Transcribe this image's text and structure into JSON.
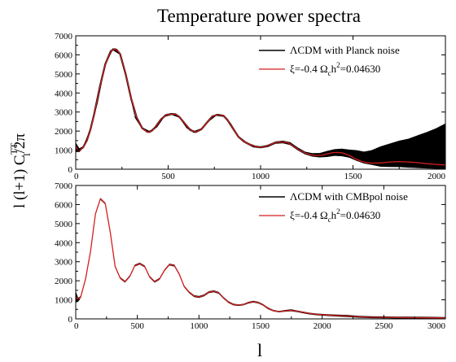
{
  "title": "Temperature power spectra",
  "xlabel": "l",
  "ylabel": "l (l+1) C_l^TT / 2π",
  "ylabel_parts": {
    "pre": "l (l+1) C",
    "sup": "TT",
    "sub": "l",
    "post": "/2π"
  },
  "colors": {
    "lcdm": "#000000",
    "xi": "#d41f1f",
    "band": "#000000",
    "axis": "#000000"
  },
  "chart_data": [
    {
      "type": "line",
      "panel": "top",
      "xlim": [
        0,
        2000
      ],
      "ylim": [
        0,
        7000
      ],
      "xticks": [
        "0",
        "500",
        "1000",
        "1500",
        "2000"
      ],
      "yticks": [
        "0",
        "1000",
        "2000",
        "3000",
        "4000",
        "5000",
        "6000",
        "7000"
      ],
      "legend_position": "top-right",
      "legend": [
        {
          "label_parts": {
            "pre": "ΛCDM with Planck noise"
          },
          "color": "#000000"
        },
        {
          "label_parts": {
            "pre": "ξ=-0.4 Ω",
            "sub": "c",
            "mid": "h",
            "sup": "2",
            "post": "=0.04630"
          },
          "color": "#d41f1f"
        }
      ],
      "series": [
        {
          "style": "line",
          "x": [
            0,
            10,
            20,
            40,
            60,
            80,
            100,
            130,
            160,
            190,
            210,
            220,
            240,
            270,
            300,
            330,
            360,
            390,
            410,
            430,
            460,
            490,
            520,
            540,
            560,
            590,
            620,
            650,
            680,
            710,
            740,
            770,
            800,
            820,
            850,
            880,
            910,
            940,
            970,
            1000,
            1030,
            1060,
            1090,
            1120,
            1150,
            1180,
            1210,
            1240,
            1270,
            1300,
            1330,
            1360,
            1390,
            1420,
            1450,
            1480,
            1510,
            1540,
            1570,
            1600,
            1650,
            1700,
            1750,
            1800,
            1850,
            1900,
            1950,
            2000
          ],
          "y": [
            1300,
            1000,
            1000,
            1150,
            1500,
            2100,
            2900,
            4300,
            5500,
            6200,
            6300,
            6280,
            6050,
            5000,
            3700,
            2700,
            2150,
            1950,
            2000,
            2200,
            2600,
            2850,
            2900,
            2880,
            2750,
            2400,
            2050,
            1950,
            2100,
            2450,
            2780,
            2860,
            2800,
            2600,
            2150,
            1700,
            1450,
            1300,
            1200,
            1150,
            1200,
            1320,
            1420,
            1430,
            1380,
            1200,
            1000,
            850,
            760,
            720,
            730,
            800,
            870,
            880,
            840,
            720,
            560,
            430,
            350,
            320,
            330,
            380,
            400,
            380,
            340,
            290,
            250,
            220
          ]
        },
        {
          "style": "band",
          "x": [
            0,
            20,
            40,
            80,
            120,
            160,
            200,
            240,
            280,
            320,
            360,
            400,
            440,
            480,
            520,
            560,
            600,
            640,
            680,
            720,
            760,
            800,
            840,
            880,
            920,
            960,
            1000,
            1040,
            1080,
            1120,
            1160,
            1200,
            1240,
            1280,
            1320,
            1360,
            1400,
            1440,
            1480,
            1520,
            1560,
            1600,
            1650,
            1700,
            1750,
            1800,
            1850,
            1900,
            1950,
            2000
          ],
          "y_upper": [
            1400,
            1100,
            1200,
            2150,
            3600,
            5550,
            6350,
            6100,
            4600,
            2800,
            2200,
            2000,
            2300,
            2850,
            2950,
            2800,
            2250,
            2000,
            2150,
            2600,
            2900,
            2850,
            2400,
            1750,
            1450,
            1250,
            1200,
            1280,
            1450,
            1500,
            1420,
            1150,
            920,
            840,
            850,
            960,
            1050,
            1080,
            1030,
            1000,
            920,
            1000,
            1200,
            1350,
            1500,
            1600,
            1780,
            1950,
            2150,
            2400
          ],
          "y_lower": [
            900,
            900,
            1100,
            2050,
            3500,
            5450,
            6250,
            6000,
            4500,
            2700,
            2100,
            1900,
            2200,
            2750,
            2850,
            2700,
            2150,
            1900,
            2050,
            2500,
            2800,
            2750,
            2300,
            1650,
            1350,
            1150,
            1100,
            1160,
            1330,
            1360,
            1270,
            1000,
            780,
            660,
            620,
            640,
            700,
            680,
            600,
            440,
            300,
            230,
            130,
            120,
            110,
            80,
            60,
            40,
            20,
            0
          ]
        },
        {
          "style": "line",
          "x": [
            0,
            10,
            20,
            40,
            60,
            80,
            100,
            130,
            160,
            190,
            210,
            220,
            240,
            270,
            300,
            330,
            360,
            390,
            410,
            430,
            460,
            490,
            520,
            540,
            560,
            590,
            620,
            650,
            680,
            710,
            740,
            770,
            800,
            820,
            850,
            880,
            910,
            940,
            970,
            1000,
            1030,
            1060,
            1090,
            1120,
            1150,
            1180,
            1210,
            1240,
            1270,
            1300,
            1330,
            1360,
            1390,
            1420,
            1450,
            1480,
            1510,
            1540,
            1570,
            1600,
            1650,
            1700,
            1750,
            1800,
            1850,
            1900,
            1950,
            2000
          ],
          "y": [
            1250,
            980,
            980,
            1130,
            1480,
            2080,
            2880,
            4280,
            5480,
            6190,
            6300,
            6280,
            6060,
            5020,
            3720,
            2710,
            2150,
            1940,
            1990,
            2190,
            2590,
            2850,
            2900,
            2880,
            2750,
            2400,
            2050,
            1950,
            2100,
            2450,
            2780,
            2860,
            2800,
            2600,
            2150,
            1700,
            1450,
            1300,
            1200,
            1150,
            1200,
            1320,
            1420,
            1430,
            1380,
            1200,
            1000,
            850,
            760,
            720,
            730,
            800,
            870,
            880,
            840,
            720,
            560,
            430,
            350,
            320,
            330,
            380,
            400,
            380,
            340,
            290,
            250,
            220
          ]
        }
      ]
    },
    {
      "type": "line",
      "panel": "bottom",
      "xlim": [
        0,
        3000
      ],
      "ylim": [
        0,
        7000
      ],
      "xticks": [
        "0",
        "500",
        "1000",
        "1500",
        "2000",
        "2500",
        "3000"
      ],
      "yticks": [
        "0",
        "1000",
        "2000",
        "3000",
        "4000",
        "5000",
        "6000",
        "7000"
      ],
      "legend_position": "top-right",
      "legend": [
        {
          "label_parts": {
            "pre": "ΛCDM with CMBpol noise"
          },
          "color": "#000000"
        },
        {
          "label_parts": {
            "pre": "ξ=-0.4 Ω",
            "sub": "c",
            "mid": "h",
            "sup": "2",
            "post": "=0.04630"
          },
          "color": "#d41f1f"
        }
      ],
      "series": [
        {
          "style": "band",
          "x": [
            0,
            20,
            40,
            80,
            120,
            160,
            200,
            240,
            280,
            320,
            360,
            400,
            440,
            480,
            520,
            560,
            600,
            640,
            680,
            720,
            760,
            800,
            840,
            880,
            920,
            960,
            1000,
            1040,
            1080,
            1120,
            1160,
            1200,
            1240,
            1280,
            1320,
            1360,
            1400,
            1440,
            1480,
            1520,
            1560,
            1600,
            1650,
            1700,
            1750,
            1800,
            1850,
            1900,
            1950,
            2000,
            2100,
            2200,
            2300,
            2400,
            2500,
            2600,
            2700,
            2800,
            2900,
            3000
          ],
          "y_upper": [
            1450,
            1100,
            1200,
            2150,
            3600,
            5550,
            6350,
            6100,
            4600,
            2800,
            2200,
            2000,
            2300,
            2850,
            2950,
            2800,
            2250,
            2000,
            2150,
            2600,
            2900,
            2850,
            2400,
            1750,
            1450,
            1250,
            1200,
            1280,
            1450,
            1500,
            1420,
            1150,
            920,
            800,
            760,
            790,
            890,
            950,
            900,
            780,
            600,
            480,
            420,
            470,
            500,
            440,
            380,
            320,
            280,
            260,
            230,
            210,
            160,
            140,
            130,
            120,
            115,
            110,
            105,
            100
          ],
          "y_lower": [
            850,
            900,
            1100,
            2050,
            3500,
            5450,
            6250,
            6000,
            4500,
            2700,
            2100,
            1900,
            2200,
            2750,
            2850,
            2700,
            2150,
            1900,
            2050,
            2500,
            2800,
            2750,
            2300,
            1650,
            1350,
            1150,
            1100,
            1180,
            1350,
            1400,
            1320,
            1050,
            830,
            710,
            680,
            710,
            800,
            860,
            810,
            690,
            510,
            400,
            340,
            380,
            400,
            350,
            290,
            230,
            190,
            170,
            130,
            100,
            60,
            40,
            30,
            20,
            15,
            10,
            5,
            0
          ]
        },
        {
          "style": "line",
          "x": [
            0,
            20,
            40,
            80,
            120,
            160,
            200,
            240,
            280,
            320,
            360,
            400,
            440,
            480,
            520,
            560,
            600,
            640,
            680,
            720,
            760,
            800,
            840,
            880,
            920,
            960,
            1000,
            1040,
            1080,
            1120,
            1160,
            1200,
            1240,
            1280,
            1320,
            1360,
            1400,
            1440,
            1480,
            1520,
            1560,
            1600,
            1650,
            1700,
            1750,
            1800,
            1850,
            1900,
            1950,
            2000,
            2100,
            2200,
            2300,
            2400,
            2500,
            2600,
            2700,
            2800,
            2900,
            3000
          ],
          "y": [
            1150,
            1000,
            1150,
            2100,
            3550,
            5500,
            6300,
            6050,
            4550,
            2750,
            2150,
            1950,
            2250,
            2800,
            2900,
            2750,
            2200,
            1950,
            2100,
            2550,
            2850,
            2800,
            2350,
            1700,
            1400,
            1200,
            1150,
            1230,
            1400,
            1450,
            1370,
            1100,
            870,
            760,
            720,
            750,
            840,
            900,
            860,
            730,
            550,
            440,
            380,
            420,
            450,
            400,
            340,
            280,
            240,
            220,
            180,
            150,
            110,
            90,
            80,
            70,
            65,
            60,
            55,
            50
          ]
        }
      ]
    }
  ]
}
